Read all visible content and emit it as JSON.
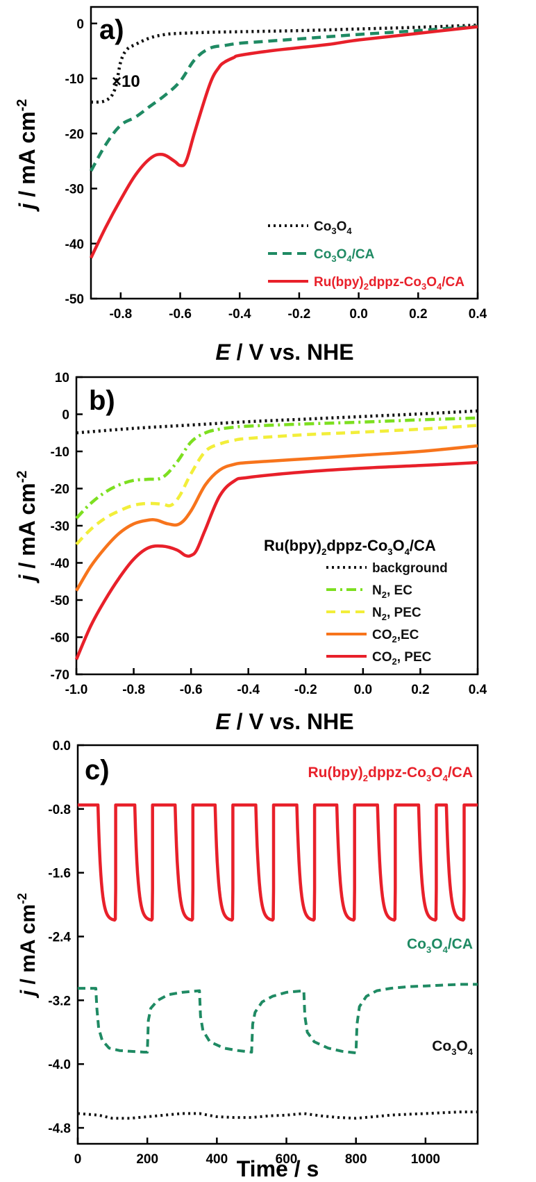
{
  "colors": {
    "black": "#111111",
    "green": "#1f8a63",
    "red": "#e8202a",
    "lime": "#7ddf20",
    "yellow": "#f2ee3a",
    "orange": "#f7741c"
  },
  "chart_data": [
    {
      "type": "line",
      "panel_label": "a)",
      "annotation": "×10",
      "xlabel_italic": "E",
      "xlabel_rest": " / V vs. NHE",
      "ylabel_italic": "j",
      "ylabel_rest": " / mA cm",
      "ylabel_sup": "-2",
      "xlim": [
        -0.9,
        0.4
      ],
      "ylim": [
        -50,
        3
      ],
      "xticks": [
        -0.8,
        -0.6,
        -0.4,
        -0.2,
        0.0,
        0.2,
        0.4
      ],
      "xtick_labels": [
        "-0.8",
        "-0.6",
        "-0.4",
        "-0.2",
        "0.0",
        "0.2",
        "0.4"
      ],
      "yticks": [
        0,
        -10,
        -20,
        -30,
        -40,
        -50
      ],
      "ytick_labels": [
        "0",
        "-10",
        "-20",
        "-30",
        "-40",
        "-50"
      ],
      "legend": [
        {
          "key": "co3o4",
          "pre": "Co",
          "s1": "3",
          "mid": "O",
          "s2": "4",
          "post": "",
          "color": "#111111",
          "dash": "3,5"
        },
        {
          "key": "co3o4ca",
          "pre": "Co",
          "s1": "3",
          "mid": "O",
          "s2": "4",
          "post": "/CA",
          "color": "#1f8a63",
          "dash": "13,8"
        },
        {
          "key": "ru",
          "pre": "Ru(bpy)",
          "s1": "2",
          "mid": "dppz-Co",
          "s2": "3",
          "post": "O",
          "s3": "4",
          "post2": "/CA",
          "color": "#e8202a",
          "dash": ""
        }
      ],
      "series": [
        {
          "name": "Co3O4",
          "color": "#111111",
          "dash": "3,5",
          "x": [
            -0.9,
            -0.85,
            -0.82,
            -0.8,
            -0.78,
            -0.75,
            -0.7,
            -0.65,
            -0.6,
            -0.5,
            -0.4,
            -0.2,
            0.0,
            0.2,
            0.4
          ],
          "y": [
            -14.3,
            -14,
            -12,
            -7,
            -4.8,
            -3.8,
            -2.6,
            -2.0,
            -1.8,
            -1.6,
            -1.5,
            -1.3,
            -1.0,
            -0.7,
            -0.3
          ]
        },
        {
          "name": "Co3O4/CA",
          "color": "#1f8a63",
          "dash": "13,8",
          "x": [
            -0.9,
            -0.85,
            -0.8,
            -0.75,
            -0.7,
            -0.65,
            -0.6,
            -0.55,
            -0.5,
            -0.45,
            -0.4,
            -0.3,
            -0.2,
            0.0,
            0.2,
            0.4
          ],
          "y": [
            -26.8,
            -22,
            -18.5,
            -17,
            -15,
            -13,
            -10.5,
            -6.5,
            -4.5,
            -4.0,
            -3.6,
            -3.2,
            -2.8,
            -2.0,
            -1.3,
            -0.5
          ]
        },
        {
          "name": "Ru(bpy)2dppz-Co3O4/CA",
          "color": "#e8202a",
          "dash": "",
          "x": [
            -0.9,
            -0.85,
            -0.8,
            -0.75,
            -0.7,
            -0.66,
            -0.62,
            -0.6,
            -0.58,
            -0.55,
            -0.5,
            -0.47,
            -0.45,
            -0.42,
            -0.4,
            -0.3,
            -0.2,
            -0.1,
            0.0,
            0.2,
            0.4
          ],
          "y": [
            -42.6,
            -37,
            -32,
            -27.5,
            -24.5,
            -23.8,
            -25,
            -25.8,
            -25,
            -19.5,
            -11,
            -8,
            -7,
            -6.2,
            -5.8,
            -5,
            -4.4,
            -3.8,
            -3.0,
            -1.8,
            -0.6
          ]
        }
      ]
    },
    {
      "type": "line",
      "panel_label": "b)",
      "xlabel_italic": "E",
      "xlabel_rest": " / V vs. NHE",
      "ylabel_italic": "j",
      "ylabel_rest": " / mA cm",
      "ylabel_sup": "-2",
      "xlim": [
        -1.0,
        0.4
      ],
      "ylim": [
        -70,
        10
      ],
      "xticks": [
        -1.0,
        -0.8,
        -0.6,
        -0.4,
        -0.2,
        0.0,
        0.2,
        0.4
      ],
      "xtick_labels": [
        "-1.0",
        "-0.8",
        "-0.6",
        "-0.4",
        "-0.2",
        "0.0",
        "0.2",
        "0.4"
      ],
      "yticks": [
        10,
        0,
        -10,
        -20,
        -30,
        -40,
        -50,
        -60,
        -70
      ],
      "ytick_labels": [
        "10",
        "0",
        "-10",
        "-20",
        "-30",
        "-40",
        "-50",
        "-60",
        "-70"
      ],
      "legend_title_pre": "Ru(bpy)",
      "legend_title_s1": "2",
      "legend_title_mid": "dppz-Co",
      "legend_title_s2": "3",
      "legend_title_mid2": "O",
      "legend_title_s3": "4",
      "legend_title_post": "/CA",
      "legend": [
        {
          "pre": "background",
          "s1": "",
          "post": "",
          "color": "#111111",
          "dash": "3,5"
        },
        {
          "pre": "N",
          "s1": "2",
          "post": ", EC",
          "color": "#7ddf20",
          "dash": "14,6,3,6"
        },
        {
          "pre": "N",
          "s1": "2",
          "post": ", PEC",
          "color": "#f2ee3a",
          "dash": "13,8"
        },
        {
          "pre": "CO",
          "s1": "2",
          "post": ",EC",
          "color": "#f7741c",
          "dash": ""
        },
        {
          "pre": "CO",
          "s1": "2",
          "post": ", PEC",
          "color": "#e8202a",
          "dash": ""
        }
      ],
      "series": [
        {
          "name": "background",
          "color": "#111111",
          "dash": "3,5",
          "x": [
            -1.0,
            -0.8,
            -0.6,
            -0.4,
            -0.2,
            0.0,
            0.2,
            0.4
          ],
          "y": [
            -5,
            -3.8,
            -2.9,
            -2.0,
            -1.3,
            -0.6,
            0.1,
            0.9
          ]
        },
        {
          "name": "N2, EC",
          "color": "#7ddf20",
          "dash": "14,6,3,6",
          "x": [
            -1.0,
            -0.95,
            -0.9,
            -0.85,
            -0.8,
            -0.75,
            -0.7,
            -0.65,
            -0.6,
            -0.55,
            -0.5,
            -0.45,
            -0.4,
            -0.2,
            0.0,
            0.2,
            0.4
          ],
          "y": [
            -28,
            -24,
            -21,
            -19,
            -17.8,
            -17.5,
            -17,
            -13,
            -7.5,
            -5,
            -4,
            -3.5,
            -3.2,
            -2.6,
            -2.1,
            -1.5,
            -1.0
          ]
        },
        {
          "name": "N2, PEC",
          "color": "#f2ee3a",
          "dash": "13,8",
          "x": [
            -1.0,
            -0.95,
            -0.9,
            -0.85,
            -0.8,
            -0.75,
            -0.7,
            -0.67,
            -0.64,
            -0.6,
            -0.55,
            -0.5,
            -0.45,
            -0.4,
            -0.2,
            0.0,
            0.2,
            0.4
          ],
          "y": [
            -35,
            -31,
            -28,
            -26,
            -24.5,
            -24,
            -24.2,
            -24.5,
            -22,
            -16,
            -10,
            -8,
            -7,
            -6.5,
            -5.5,
            -4.8,
            -4,
            -3
          ]
        },
        {
          "name": "CO2,EC",
          "color": "#f7741c",
          "dash": "",
          "x": [
            -1.0,
            -0.95,
            -0.9,
            -0.85,
            -0.8,
            -0.75,
            -0.72,
            -0.68,
            -0.64,
            -0.6,
            -0.55,
            -0.5,
            -0.45,
            -0.4,
            -0.2,
            0.0,
            0.2,
            0.4
          ],
          "y": [
            -47.5,
            -41,
            -36,
            -32,
            -29.5,
            -28.5,
            -28.5,
            -29.5,
            -29.5,
            -26,
            -19,
            -15,
            -13.5,
            -13,
            -12,
            -11,
            -10,
            -8.5
          ]
        },
        {
          "name": "CO2, PEC",
          "color": "#e8202a",
          "dash": "",
          "x": [
            -1.0,
            -0.95,
            -0.9,
            -0.85,
            -0.8,
            -0.75,
            -0.7,
            -0.65,
            -0.62,
            -0.6,
            -0.58,
            -0.55,
            -0.5,
            -0.45,
            -0.4,
            -0.2,
            0.0,
            0.2,
            0.4
          ],
          "y": [
            -66,
            -57,
            -50,
            -44,
            -39,
            -36,
            -35.5,
            -36.5,
            -38,
            -38,
            -36.5,
            -31,
            -22,
            -18,
            -17,
            -15.5,
            -14.5,
            -13.8,
            -13
          ]
        }
      ]
    },
    {
      "type": "line",
      "panel_label": "c)",
      "xlabel": "Time / s",
      "ylabel_italic": "j",
      "ylabel_rest": " / mA cm",
      "ylabel_sup": "-2",
      "xlim": [
        0,
        1150
      ],
      "ylim": [
        -5.0,
        0.0
      ],
      "xticks": [
        0,
        200,
        400,
        600,
        800,
        1000
      ],
      "xtick_labels": [
        "0",
        "200",
        "400",
        "600",
        "800",
        "1000"
      ],
      "yticks": [
        0.0,
        -0.8,
        -1.6,
        -2.4,
        -3.2,
        -4.0,
        -4.8
      ],
      "ytick_labels": [
        "0.0",
        "-0.8",
        "-1.6",
        "-2.4",
        "-3.2",
        "-4.0",
        "-4.8"
      ],
      "labels": [
        {
          "pre": "Ru(bpy)",
          "s1": "2",
          "mid": "dppz-Co",
          "s2": "3",
          "mid2": "O",
          "s3": "4",
          "post": "/CA",
          "color": "#e8202a"
        },
        {
          "pre": "Co",
          "s1": "3",
          "mid": "O",
          "s2": "4",
          "mid2": "/CA",
          "s3": "",
          "post": "",
          "color": "#1f8a63"
        },
        {
          "pre": "Co",
          "s1": "3",
          "mid": "O",
          "s2": "4",
          "mid2": "",
          "s3": "",
          "post": "",
          "color": "#111111"
        }
      ],
      "series": [
        {
          "name": "Ru(bpy)2dppz-Co3O4/CA",
          "color": "#e8202a",
          "dash": "",
          "light_high": -0.75,
          "dark_low": -2.2,
          "on_times": [
            58,
            164,
            280,
            395,
            512,
            630,
            745,
            862,
            980,
            1060
          ],
          "end": 1150,
          "start": 0
        },
        {
          "name": "Co3O4/CA",
          "color": "#1f8a63",
          "dash": "11,7",
          "x": [
            0,
            52,
            55,
            60,
            70,
            90,
            120,
            150,
            190,
            200,
            203,
            210,
            230,
            260,
            300,
            350,
            353,
            360,
            380,
            420,
            460,
            500,
            503,
            510,
            530,
            560,
            600,
            650,
            653,
            660,
            680,
            720,
            760,
            800,
            803,
            810,
            830,
            860,
            900,
            950,
            1000,
            1050,
            1100,
            1150
          ],
          "y": [
            -3.05,
            -3.05,
            -3.3,
            -3.55,
            -3.7,
            -3.8,
            -3.83,
            -3.84,
            -3.85,
            -3.85,
            -3.45,
            -3.3,
            -3.2,
            -3.13,
            -3.1,
            -3.08,
            -3.4,
            -3.58,
            -3.72,
            -3.8,
            -3.83,
            -3.85,
            -3.5,
            -3.35,
            -3.22,
            -3.15,
            -3.1,
            -3.08,
            -3.4,
            -3.6,
            -3.72,
            -3.8,
            -3.84,
            -3.86,
            -3.5,
            -3.28,
            -3.15,
            -3.08,
            -3.05,
            -3.03,
            -3.02,
            -3.01,
            -3.0,
            -3.0
          ]
        },
        {
          "name": "Co3O4",
          "color": "#111111",
          "dash": "3,5",
          "x": [
            0,
            60,
            100,
            150,
            200,
            250,
            300,
            350,
            400,
            450,
            500,
            550,
            600,
            650,
            700,
            750,
            800,
            850,
            900,
            950,
            1000,
            1050,
            1100,
            1150
          ],
          "y": [
            -4.62,
            -4.64,
            -4.68,
            -4.68,
            -4.66,
            -4.64,
            -4.62,
            -4.62,
            -4.66,
            -4.67,
            -4.67,
            -4.65,
            -4.64,
            -4.62,
            -4.65,
            -4.67,
            -4.68,
            -4.66,
            -4.64,
            -4.63,
            -4.62,
            -4.61,
            -4.6,
            -4.6
          ]
        }
      ]
    }
  ]
}
